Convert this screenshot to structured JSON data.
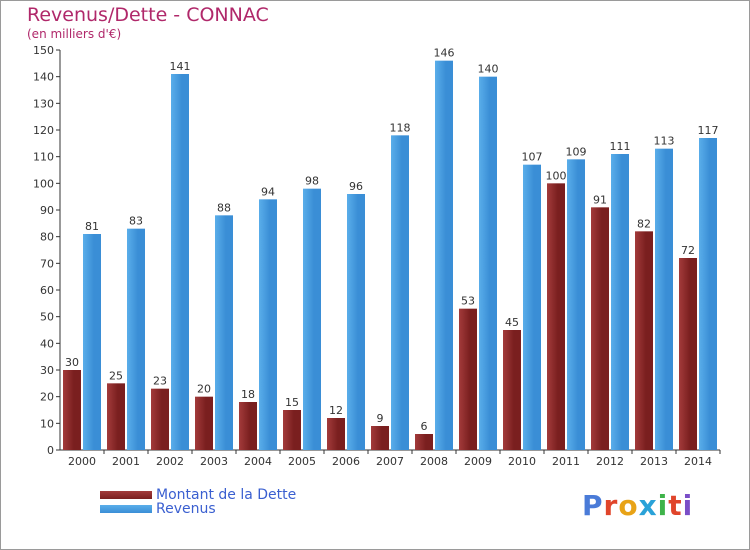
{
  "title": "Revenus/Dette - CONNAC",
  "subtitle": "(en milliers d'€)",
  "legend": {
    "debt_label": "Montant de la Dette",
    "revenue_label": "Revenus"
  },
  "logo": {
    "text": "Proxiti",
    "letter_colors": [
      "#4a7bd8",
      "#e0452b",
      "#e8a317",
      "#2aa2d8",
      "#3eb34a",
      "#e0452b",
      "#7a4ec7"
    ]
  },
  "colors": {
    "debt": "#7a1f1f",
    "debt_light": "#a33b3b",
    "revenue": "#3a8ed6",
    "revenue_light": "#5aaeea",
    "axis": "#333333",
    "grid": "#dddddd",
    "title": "#b0286a"
  },
  "chart_data": {
    "type": "bar",
    "categories": [
      "2000",
      "2001",
      "2002",
      "2003",
      "2004",
      "2005",
      "2006",
      "2007",
      "2008",
      "2009",
      "2010",
      "2011",
      "2012",
      "2013",
      "2014"
    ],
    "series": [
      {
        "name": "Montant de la Dette",
        "values": [
          30,
          25,
          23,
          20,
          18,
          15,
          12,
          9,
          6,
          53,
          45,
          100,
          91,
          82,
          72
        ]
      },
      {
        "name": "Revenus",
        "values": [
          81,
          83,
          141,
          88,
          94,
          98,
          96,
          118,
          146,
          140,
          107,
          109,
          111,
          113,
          117
        ]
      }
    ],
    "ylim": [
      0,
      150
    ],
    "ytick_step": 10,
    "title": "Revenus/Dette - CONNAC",
    "ylabel": "",
    "xlabel": "",
    "grid": false,
    "legend_position": "bottom-left"
  }
}
